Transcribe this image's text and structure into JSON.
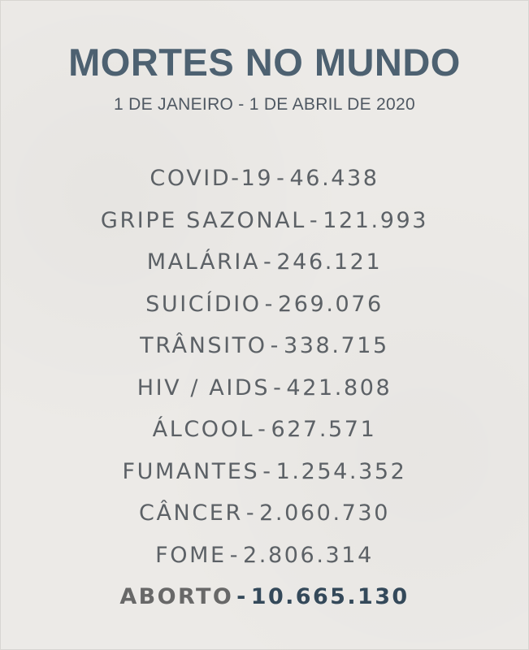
{
  "header": {
    "title": "MORTES NO MUNDO",
    "subtitle": "1 DE JANEIRO - 1 DE ABRIL DE 2020"
  },
  "separator": "-",
  "items": [
    {
      "cause": "COVID-19",
      "value": "46.438"
    },
    {
      "cause": "GRIPE SAZONAL",
      "value": "121.993"
    },
    {
      "cause": "MALÁRIA",
      "value": "246.121"
    },
    {
      "cause": "SUICÍDIO",
      "value": "269.076"
    },
    {
      "cause": "TRÂNSITO",
      "value": "338.715"
    },
    {
      "cause": "HIV / AIDS",
      "value": "421.808"
    },
    {
      "cause": "ÁLCOOL",
      "value": "627.571"
    },
    {
      "cause": "FUMANTES",
      "value": "1.254.352"
    },
    {
      "cause": "CÂNCER",
      "value": "2.060.730"
    },
    {
      "cause": "FOME",
      "value": "2.806.314"
    },
    {
      "cause": "ABORTO",
      "value": "10.665.130"
    }
  ],
  "colors": {
    "background": "#eceae7",
    "title": "#4d6171",
    "text": "#5c6166",
    "highlight": "#34495a"
  }
}
